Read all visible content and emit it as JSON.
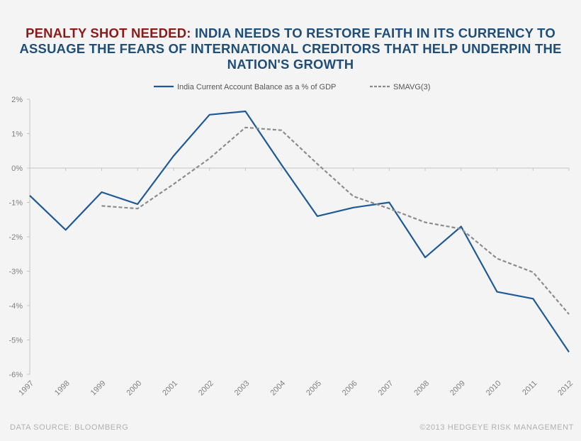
{
  "title": {
    "highlight": "PENALTY SHOT NEEDED:",
    "rest": " INDIA NEEDS TO RESTORE FAITH IN ITS CURRENCY TO ASSUAGE THE FEARS OF INTERNATIONAL CREDITORS THAT HELP UNDERPIN THE NATION'S GROWTH",
    "highlight_color": "#8b1a1a",
    "text_color": "#1f4e79"
  },
  "footer": {
    "source": "DATA SOURCE:  BLOOMBERG",
    "copyright": "©2013 HEDGEYE  RISK MANAGEMENT"
  },
  "chart_data": {
    "type": "line",
    "title": "",
    "xlabel": "",
    "ylabel": "",
    "x": [
      "1997",
      "1998",
      "1999",
      "2000",
      "2001",
      "2002",
      "2003",
      "2004",
      "2005",
      "2006",
      "2007",
      "2008",
      "2009",
      "2010",
      "2011",
      "2012"
    ],
    "ylim": [
      -6,
      2
    ],
    "yticks": [
      2,
      1,
      0,
      -1,
      -2,
      -3,
      -4,
      -5,
      -6
    ],
    "ytick_labels": [
      "2%",
      "1%",
      "0%",
      "-1%",
      "-2%",
      "-3%",
      "-4%",
      "-5%",
      "-6%"
    ],
    "grid": false,
    "legend_position": "top-center",
    "series": [
      {
        "name": "India Current Account Balance as a % of GDP",
        "color": "#1f5a96",
        "style": "solid",
        "values": [
          -0.8,
          -1.8,
          -0.7,
          -1.05,
          0.35,
          1.55,
          1.65,
          0.1,
          -1.4,
          -1.15,
          -1.0,
          -2.6,
          -1.7,
          -3.6,
          -3.8,
          -5.35
        ]
      },
      {
        "name": "SMAVG(3)",
        "color": "#8c8c8c",
        "style": "dashed",
        "values": [
          null,
          null,
          -1.1,
          -1.18,
          -0.47,
          0.28,
          1.18,
          1.1,
          0.12,
          -0.82,
          -1.18,
          -1.58,
          -1.77,
          -2.63,
          -3.03,
          -4.25
        ]
      }
    ]
  }
}
